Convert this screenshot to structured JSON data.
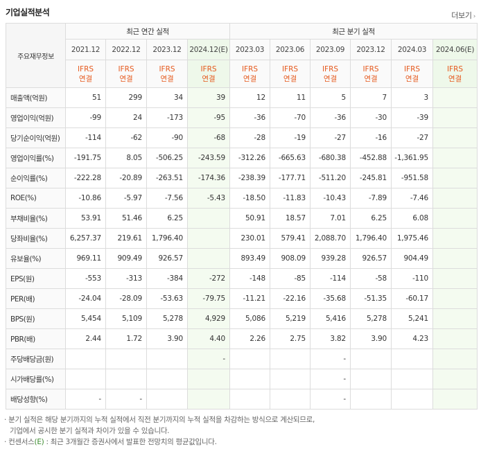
{
  "title": "기업실적분석",
  "more_label": "더보기",
  "header": {
    "label_col": "주요재무정보",
    "annual_group": "최근 연간 실적",
    "quarter_group": "최근 분기 실적",
    "annual_dates": [
      "2021.12",
      "2022.12",
      "2023.12",
      "2024.12(E)"
    ],
    "quarter_dates": [
      "2023.03",
      "2023.06",
      "2023.09",
      "2023.12",
      "2024.03",
      "2024.06(E)"
    ],
    "ifrs_line1": "IFRS",
    "ifrs_line2": "연결"
  },
  "rows": [
    {
      "label": "매출액(억원)",
      "values": [
        "51",
        "299",
        "34",
        "39",
        "12",
        "11",
        "5",
        "7",
        "3",
        ""
      ]
    },
    {
      "label": "영업이익(억원)",
      "values": [
        "-99",
        "24",
        "-173",
        "-95",
        "-36",
        "-70",
        "-36",
        "-30",
        "-39",
        ""
      ]
    },
    {
      "label": "당기순이익(억원)",
      "values": [
        "-114",
        "-62",
        "-90",
        "-68",
        "-28",
        "-19",
        "-27",
        "-16",
        "-27",
        ""
      ]
    },
    {
      "label": "영업이익률(%)",
      "values": [
        "-191.75",
        "8.05",
        "-506.25",
        "-243.59",
        "-312.26",
        "-665.63",
        "-680.38",
        "-452.88",
        "-1,361.95",
        ""
      ]
    },
    {
      "label": "순이익률(%)",
      "values": [
        "-222.28",
        "-20.89",
        "-263.51",
        "-174.36",
        "-238.39",
        "-177.71",
        "-511.20",
        "-245.81",
        "-951.58",
        ""
      ]
    },
    {
      "label": "ROE(%)",
      "values": [
        "-10.86",
        "-5.97",
        "-7.56",
        "-5.43",
        "-18.50",
        "-11.83",
        "-10.43",
        "-7.89",
        "-7.46",
        ""
      ]
    },
    {
      "label": "부채비율(%)",
      "values": [
        "53.91",
        "51.46",
        "6.25",
        "",
        "50.91",
        "18.57",
        "7.01",
        "6.25",
        "6.08",
        ""
      ]
    },
    {
      "label": "당좌비율(%)",
      "values": [
        "6,257.37",
        "219.61",
        "1,796.40",
        "",
        "230.01",
        "579.41",
        "2,088.70",
        "1,796.40",
        "1,975.46",
        ""
      ]
    },
    {
      "label": "유보율(%)",
      "values": [
        "969.11",
        "909.49",
        "926.57",
        "",
        "893.49",
        "908.09",
        "939.28",
        "926.57",
        "904.49",
        ""
      ]
    },
    {
      "label": "EPS(원)",
      "values": [
        "-553",
        "-313",
        "-384",
        "-272",
        "-148",
        "-85",
        "-114",
        "-58",
        "-110",
        ""
      ]
    },
    {
      "label": "PER(배)",
      "values": [
        "-24.04",
        "-28.09",
        "-53.63",
        "-79.75",
        "-11.21",
        "-22.16",
        "-35.68",
        "-51.35",
        "-60.17",
        ""
      ]
    },
    {
      "label": "BPS(원)",
      "values": [
        "5,454",
        "5,109",
        "5,278",
        "4,929",
        "5,086",
        "5,219",
        "5,416",
        "5,278",
        "5,241",
        ""
      ]
    },
    {
      "label": "PBR(배)",
      "values": [
        "2.44",
        "1.72",
        "3.90",
        "4.40",
        "2.26",
        "2.75",
        "3.82",
        "3.90",
        "4.23",
        ""
      ]
    },
    {
      "label": "주당배당금(원)",
      "values": [
        "",
        "",
        "",
        "-",
        "",
        "",
        "-",
        "",
        "",
        ""
      ]
    },
    {
      "label": "시가배당률(%)",
      "values": [
        "",
        "",
        "",
        "",
        "",
        "",
        "-",
        "",
        "",
        ""
      ]
    },
    {
      "label": "배당성향(%)",
      "values": [
        "-",
        "-",
        "",
        "",
        "",
        "",
        "-",
        "",
        "",
        ""
      ]
    }
  ],
  "notes": {
    "line1": "분기 실적은 해당 분기까지의 누적 실적에서 직전 분기까지의 누적 실적을 차감하는 방식으로 계산되므로,",
    "line2": "기업에서 공시한 분기 실적과 차이가 있을 수 있습니다.",
    "line3_prefix": "컨센서스",
    "line3_e": "(E)",
    "line3_suffix": ": 최근 3개월간 증권사에서 발표한 전망치의 평균값입니다."
  }
}
